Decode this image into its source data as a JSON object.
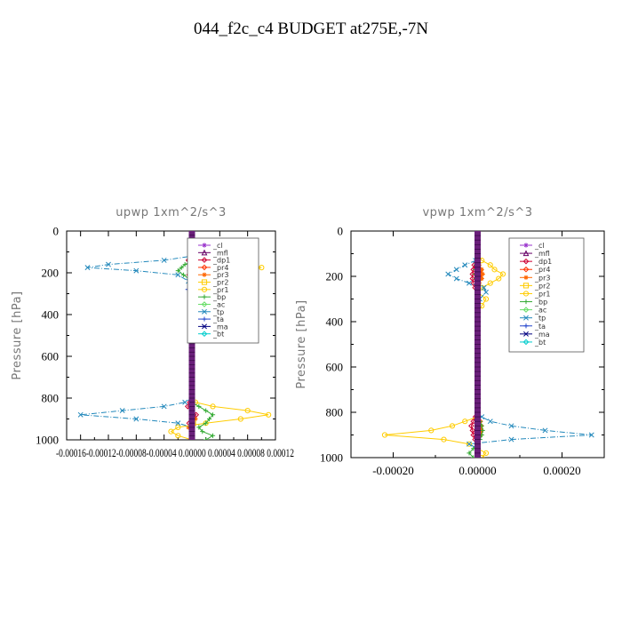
{
  "main_title": "044_f2c_c4  BUDGET at275E,-7N",
  "chart_data": [
    {
      "type": "line",
      "title": "upwp   1xm^2/s^3",
      "ylabel": "Pressure [hPa]",
      "xlabel": "",
      "xlim": [
        -0.00018,
        0.00012
      ],
      "ylim": [
        1000,
        0
      ],
      "y_ticks": [
        "0",
        "200",
        "400",
        "600",
        "800",
        "1000"
      ],
      "x_tick_text": "-0.00016-0.00012-0.00008-0.00004 0.00000 0.00004 0.00008 0.00012",
      "legend_position": "upper-right",
      "y": [
        0,
        40,
        80,
        120,
        140,
        160,
        175,
        190,
        210,
        240,
        280,
        330,
        400,
        500,
        600,
        700,
        800,
        820,
        840,
        860,
        880,
        900,
        920,
        940,
        960,
        980,
        1000
      ],
      "series": [
        {
          "name": "_cl",
          "color": "#9933cc",
          "values": [
            0,
            0,
            0,
            0,
            0,
            0,
            0,
            0,
            0,
            0,
            0,
            0,
            0,
            0,
            0,
            0,
            0,
            0,
            0,
            0,
            0,
            0,
            0,
            0,
            0,
            0,
            0
          ]
        },
        {
          "name": "_mfl",
          "color": "#660066",
          "values": [
            0,
            0,
            0,
            0,
            0,
            0,
            0,
            0,
            0,
            0,
            0,
            0,
            0,
            0,
            0,
            0,
            0,
            0,
            0,
            0,
            0,
            0,
            0,
            0,
            0,
            0,
            0
          ]
        },
        {
          "name": "_dp1",
          "color": "#cc0033",
          "values": [
            0,
            0,
            0,
            0,
            -5e-06,
            0,
            6e-06,
            0,
            -4e-06,
            0,
            0,
            0,
            0,
            0,
            0,
            0,
            0,
            -3e-06,
            -6e-06,
            0,
            6e-06,
            0,
            -4e-06,
            0,
            0,
            0,
            0
          ]
        },
        {
          "name": "_pr4",
          "color": "#ff3300",
          "values": [
            0,
            0,
            0,
            0,
            0,
            3e-06,
            0,
            -3e-06,
            0,
            0,
            0,
            0,
            0,
            0,
            0,
            0,
            0,
            0,
            0,
            0,
            0,
            3e-06,
            0,
            0,
            0,
            0,
            0
          ]
        },
        {
          "name": "_pr3",
          "color": "#ff6600",
          "values": [
            0,
            0,
            0,
            0,
            0,
            0,
            4e-06,
            0,
            -4e-06,
            0,
            0,
            0,
            0,
            0,
            0,
            0,
            0,
            0,
            0,
            0,
            0,
            5e-06,
            0,
            -5e-06,
            0,
            0,
            0
          ]
        },
        {
          "name": "_pr2",
          "color": "#ffcc00",
          "values": [
            0,
            0,
            0,
            0,
            0,
            0,
            2e-06,
            0,
            0,
            0,
            0,
            0,
            0,
            0,
            0,
            0,
            0,
            0,
            0,
            0,
            0,
            0,
            2e-06,
            0,
            0,
            0,
            0
          ]
        },
        {
          "name": "_pr1",
          "color": "#ffcc00",
          "values": [
            0,
            0,
            0,
            0,
            3e-05,
            7e-05,
            0.0001,
            4e-05,
            1e-05,
            0,
            0,
            0,
            0,
            0,
            0,
            0,
            0,
            5e-06,
            3e-05,
            8e-05,
            0.00011,
            7e-05,
            2e-05,
            -2e-05,
            -3e-05,
            -2e-05,
            0
          ]
        },
        {
          "name": "_bp",
          "color": "#33aa33",
          "values": [
            0,
            0,
            0,
            0,
            4e-06,
            -1e-05,
            -1.5e-05,
            -2e-05,
            -1.2e-05,
            0,
            0,
            0,
            0,
            0,
            0,
            0,
            0,
            0,
            1e-05,
            2e-05,
            3e-05,
            2.5e-05,
            2e-05,
            1e-05,
            1.5e-05,
            3e-05,
            2e-05
          ]
        },
        {
          "name": "_ac",
          "color": "#66dd66",
          "values": [
            0,
            0,
            0,
            0,
            0,
            0,
            0,
            0,
            0,
            0,
            0,
            0,
            0,
            0,
            0,
            0,
            0,
            0,
            0,
            0,
            0,
            0,
            0,
            0,
            0,
            0,
            0
          ]
        },
        {
          "name": "_tp",
          "color": "#2288bb",
          "values": [
            0,
            0,
            0,
            0,
            -4e-05,
            -0.00012,
            -0.00015,
            -8e-05,
            -2e-05,
            -5e-06,
            4e-06,
            0,
            0,
            0,
            0,
            0,
            0,
            -1e-05,
            -4e-05,
            -0.0001,
            -0.00016,
            -8e-05,
            -2e-05,
            0,
            0,
            0,
            0
          ]
        },
        {
          "name": "_ta",
          "color": "#2244cc",
          "values": [
            0,
            0,
            0,
            0,
            0,
            0,
            0,
            0,
            0,
            3e-06,
            -6e-06,
            2e-06,
            0,
            0,
            0,
            0,
            0,
            0,
            0,
            0,
            0,
            0,
            0,
            0,
            0,
            0,
            0
          ]
        },
        {
          "name": "_ma",
          "color": "#000080",
          "values": [
            0,
            0,
            0,
            0,
            0,
            0,
            0,
            0,
            0,
            0,
            0,
            0,
            0,
            0,
            0,
            0,
            0,
            0,
            0,
            0,
            0,
            0,
            0,
            0,
            0,
            0,
            0
          ]
        },
        {
          "name": "_bt",
          "color": "#00cccc",
          "values": [
            0,
            0,
            0,
            0,
            0,
            0,
            0,
            0,
            0,
            0,
            0,
            0,
            0,
            0,
            0,
            0,
            0,
            0,
            0,
            0,
            0,
            0,
            0,
            0,
            0,
            0,
            0
          ]
        }
      ]
    },
    {
      "type": "line",
      "title": "vpwp   1xm^2/s^3",
      "ylabel": "Pressure [hPa]",
      "xlabel": "",
      "xlim": [
        -0.0003,
        0.0003
      ],
      "ylim": [
        1000,
        0
      ],
      "y_ticks": [
        "0",
        "200",
        "400",
        "600",
        "800",
        "1000"
      ],
      "x_ticks": [
        "-0.00020",
        "0.00000",
        "0.00020"
      ],
      "legend_position": "upper-right",
      "y": [
        0,
        50,
        100,
        130,
        150,
        170,
        190,
        210,
        230,
        250,
        270,
        300,
        330,
        360,
        400,
        500,
        600,
        700,
        800,
        820,
        840,
        860,
        880,
        900,
        920,
        940,
        960,
        980,
        1000
      ],
      "series": [
        {
          "name": "_cl",
          "color": "#9933cc",
          "values": [
            0,
            0,
            0,
            0,
            0,
            0,
            0,
            0,
            0,
            0,
            0,
            0,
            0,
            0,
            0,
            0,
            0,
            0,
            0,
            0,
            0,
            0,
            0,
            0,
            0,
            0,
            0,
            0,
            0
          ]
        },
        {
          "name": "_mfl",
          "color": "#660066",
          "values": [
            0,
            0,
            0,
            0,
            0,
            0,
            0,
            0,
            0,
            0,
            0,
            0,
            0,
            0,
            0,
            0,
            0,
            0,
            0,
            0,
            0,
            0,
            0,
            0,
            0,
            0,
            0,
            0,
            0
          ]
        },
        {
          "name": "_dp1",
          "color": "#cc0033",
          "values": [
            0,
            0,
            0,
            0,
            -8e-06,
            -1e-05,
            -1.2e-05,
            -1.2e-05,
            -1e-05,
            -6e-06,
            0,
            0,
            0,
            0,
            0,
            0,
            0,
            0,
            0,
            -5e-06,
            -1e-05,
            -1.5e-05,
            -1.2e-05,
            -1e-05,
            -6e-06,
            0,
            0,
            0,
            0
          ]
        },
        {
          "name": "_pr4",
          "color": "#ff3300",
          "values": [
            0,
            0,
            0,
            0,
            0,
            6e-06,
            8e-06,
            6e-06,
            0,
            0,
            0,
            0,
            0,
            0,
            0,
            0,
            0,
            0,
            0,
            0,
            6e-06,
            8e-06,
            6e-06,
            0,
            0,
            0,
            0,
            0,
            0
          ]
        },
        {
          "name": "_pr3",
          "color": "#ff6600",
          "values": [
            0,
            0,
            0,
            0,
            4e-06,
            1e-05,
            1.2e-05,
            1e-05,
            4e-06,
            0,
            0,
            0,
            0,
            0,
            0,
            0,
            0,
            0,
            0,
            0,
            4e-06,
            8e-06,
            1e-05,
            8e-06,
            0,
            0,
            0,
            0,
            0
          ]
        },
        {
          "name": "_pr2",
          "color": "#ffcc00",
          "values": [
            0,
            0,
            0,
            0,
            0,
            0,
            0,
            0,
            0,
            0,
            0,
            0,
            0,
            0,
            0,
            0,
            0,
            0,
            0,
            0,
            0,
            0,
            0,
            0,
            0,
            0,
            0,
            0,
            0
          ]
        },
        {
          "name": "_pr1",
          "color": "#ffcc00",
          "values": [
            0,
            0,
            0,
            1e-05,
            3e-05,
            4e-05,
            6e-05,
            5e-05,
            3e-05,
            1e-05,
            0,
            2e-05,
            1e-05,
            0,
            0,
            0,
            0,
            0,
            0,
            0,
            -3e-05,
            -6e-05,
            -0.00011,
            -0.00022,
            -8e-05,
            -2e-05,
            0,
            2e-05,
            1e-05
          ]
        },
        {
          "name": "_bp",
          "color": "#33aa33",
          "values": [
            0,
            0,
            0,
            0,
            -4e-06,
            -6e-06,
            -6e-06,
            -4e-06,
            0,
            0,
            0,
            0,
            0,
            0,
            0,
            0,
            0,
            0,
            0,
            0,
            6e-06,
            1e-05,
            1.2e-05,
            1e-05,
            6e-06,
            0,
            -1e-05,
            -2e-05,
            -1e-05
          ]
        },
        {
          "name": "_ac",
          "color": "#66dd66",
          "values": [
            0,
            0,
            0,
            0,
            0,
            0,
            0,
            0,
            0,
            0,
            0,
            0,
            0,
            0,
            0,
            0,
            0,
            0,
            0,
            0,
            0,
            0,
            0,
            0,
            0,
            0,
            0,
            0,
            0
          ]
        },
        {
          "name": "_tp",
          "color": "#2288bb",
          "values": [
            0,
            0,
            0,
            -5e-06,
            -3e-05,
            -5e-05,
            -7e-05,
            -5e-05,
            -2e-05,
            1.5e-05,
            2e-05,
            5e-06,
            0,
            0,
            0,
            0,
            0,
            0,
            0,
            1e-05,
            3e-05,
            8e-05,
            0.00016,
            0.00027,
            8e-05,
            -2e-05,
            0,
            0,
            0
          ]
        },
        {
          "name": "_ta",
          "color": "#2244cc",
          "values": [
            0,
            0,
            0,
            0,
            0,
            0,
            0,
            0,
            0,
            0,
            0,
            0,
            0,
            0,
            0,
            0,
            0,
            0,
            0,
            0,
            0,
            0,
            0,
            0,
            0,
            0,
            0,
            0,
            0
          ]
        },
        {
          "name": "_ma",
          "color": "#000080",
          "values": [
            0,
            0,
            0,
            0,
            0,
            0,
            0,
            0,
            0,
            0,
            0,
            0,
            0,
            0,
            0,
            0,
            0,
            0,
            0,
            0,
            0,
            0,
            0,
            0,
            0,
            0,
            0,
            0,
            0
          ]
        },
        {
          "name": "_bt",
          "color": "#00cccc",
          "values": [
            0,
            0,
            0,
            0,
            0,
            0,
            0,
            0,
            0,
            0,
            0,
            0,
            0,
            0,
            0,
            0,
            0,
            0,
            0,
            0,
            0,
            0,
            0,
            0,
            0,
            0,
            0,
            0,
            0
          ]
        }
      ]
    }
  ]
}
